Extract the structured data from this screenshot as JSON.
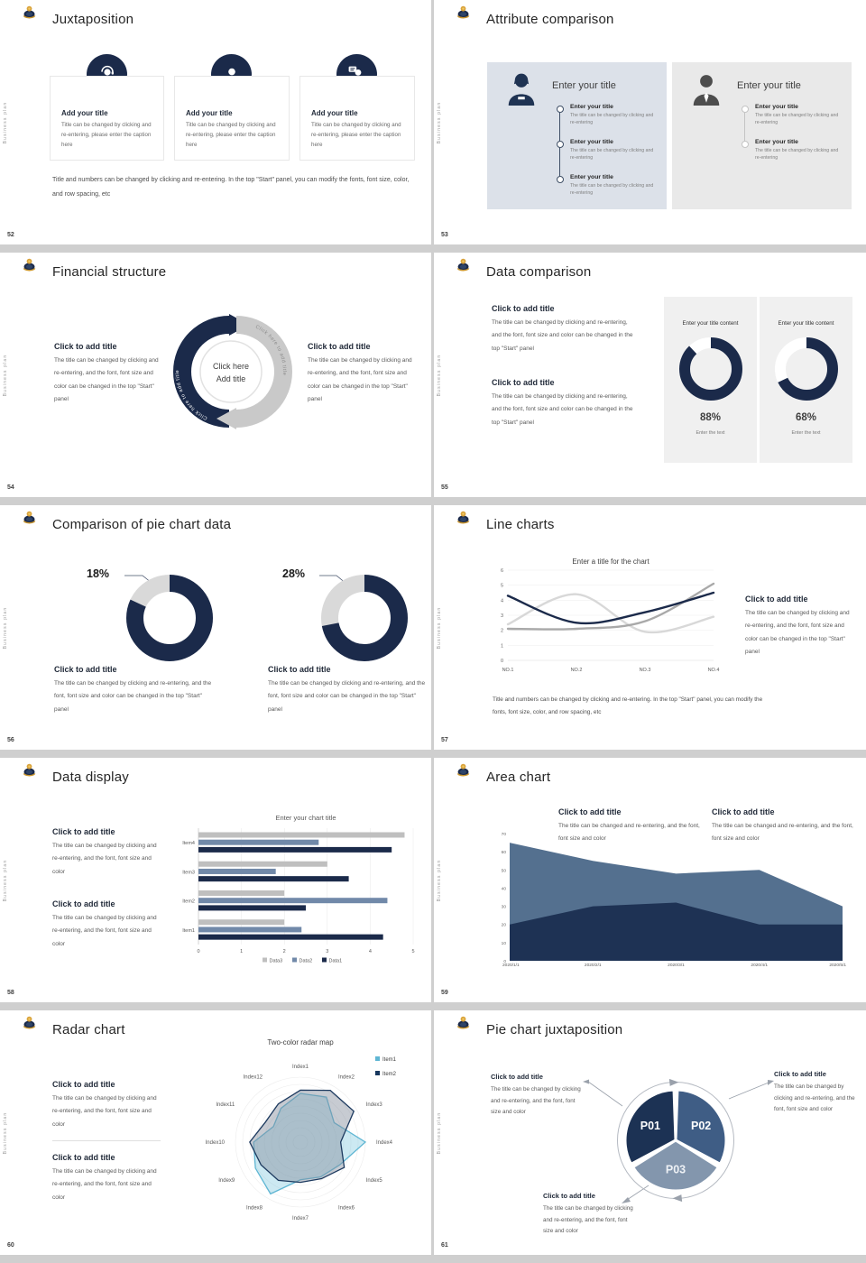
{
  "page": {
    "sidebar_text": "Business plan"
  },
  "slides": [
    {
      "number": "52",
      "title": "Juxtaposition",
      "cards": [
        {
          "title": "Add your title",
          "caption": "Title can be changed by clicking and re-entering, please enter the caption here"
        },
        {
          "title": "Add your title",
          "caption": "Title can be changed by clicking and re-entering, please enter the caption here"
        },
        {
          "title": "Add your title",
          "caption": "Title can be changed by clicking and re-entering, please enter the caption here"
        }
      ],
      "footer": "Title and numbers can be changed by clicking and re-entering. In the top \"Start\" panel, you can modify the fonts, font size, color, and row spacing, etc"
    },
    {
      "number": "53",
      "title": "Attribute comparison",
      "panels": [
        {
          "heading": "Enter your title",
          "items": [
            {
              "title": "Enter your title",
              "caption": "The title can be changed by clicking and re-entering"
            },
            {
              "title": "Enter your title",
              "caption": "The title can be changed by clicking and re-entering"
            },
            {
              "title": "Enter your title",
              "caption": "The title can be changed by clicking and re-entering"
            }
          ]
        },
        {
          "heading": "Enter your title",
          "items": [
            {
              "title": "Enter your title",
              "caption": "The title can be changed by clicking and re-entering"
            },
            {
              "title": "Enter your title",
              "caption": "The title can be changed by clicking and re-entering"
            }
          ]
        }
      ]
    },
    {
      "number": "54",
      "title": "Financial structure",
      "left": {
        "title": "Click to add title",
        "caption": "The title can be changed by clicking and re-entering, and the font, font size and color can be changed in the top \"Start\" panel"
      },
      "right": {
        "title": "Click to add title",
        "caption": "The title can be changed by clicking and re-entering, and the font, font size and color can be changed in the top \"Start\" panel"
      },
      "center": {
        "line1": "Click here",
        "line2": "Add title",
        "arc_left": "Click here to add title",
        "arc_right": "Click here to add title"
      }
    },
    {
      "number": "55",
      "title": "Data comparison",
      "blocks": [
        {
          "title": "Click to add title",
          "caption": "The title can be changed by clicking and re-entering, and the font, font size and color can be changed in the top \"Start\" panel"
        },
        {
          "title": "Click to add title",
          "caption": "The title can be changed by clicking and re-entering, and the font, font size and color can be changed in the top \"Start\" panel"
        }
      ],
      "cards": [
        {
          "heading": "Enter your title content",
          "caption": "Enter the text"
        },
        {
          "heading": "Enter your title content",
          "caption": "Enter the text"
        }
      ]
    },
    {
      "number": "56",
      "title": "Comparison of pie chart data",
      "donuts": [
        {
          "title": "Click to add title",
          "caption": "The title can be changed by clicking and re-entering, and the font, font size and color can be changed in the top \"Start\" panel"
        },
        {
          "title": "Click to add title",
          "caption": "The title can be changed by clicking and re-entering, and the font, font size and color can be changed in the top \"Start\" panel"
        }
      ]
    },
    {
      "number": "57",
      "title": "Line charts",
      "block": {
        "title": "Click to add title",
        "caption": "The title can be changed by clicking and re-entering, and the font, font size and color can be changed in the top \"Start\" panel"
      },
      "footer": "Title and numbers can be changed by clicking and re-entering. In the top \"Start\" panel, you can modify the fonts, font size, color, and row spacing, etc"
    },
    {
      "number": "58",
      "title": "Data display",
      "blocks": [
        {
          "title": "Click to add title",
          "caption": "The title can be changed by clicking and re-entering, and the font, font size and color"
        },
        {
          "title": "Click to add title",
          "caption": "The title can be changed by clicking and re-entering, and the font, font size and color"
        }
      ]
    },
    {
      "number": "59",
      "title": "Area chart",
      "blocks": [
        {
          "title": "Click to add title",
          "caption": "The title can be changed and re-entering, and the font, font size and color"
        },
        {
          "title": "Click to add title",
          "caption": "The title can be changed and re-entering, and the font, font size and color"
        }
      ]
    },
    {
      "number": "60",
      "title": "Radar chart",
      "blocks": [
        {
          "title": "Click to add title",
          "caption": "The title can be changed by clicking and re-entering, and the font, font size and color"
        },
        {
          "title": "Click to add title",
          "caption": "The title can be changed by clicking and re-entering, and the font, font size and color"
        }
      ]
    },
    {
      "number": "61",
      "title": "Pie chart juxtaposition",
      "blocks": [
        {
          "title": "Click to add title",
          "caption": "The title can be changed by clicking and re-entering, and the font, font size and color"
        },
        {
          "title": "Click to add title",
          "caption": "The title can be changed by clicking and re-entering, and the font, font size and color"
        },
        {
          "title": "Click to add title",
          "caption": "The title can be changed by clicking and re-entering, and the font, font size and color"
        }
      ]
    }
  ],
  "chart_data": [
    {
      "name": "data-comparison-donut-1",
      "type": "donut",
      "percent": 88,
      "label": "88%",
      "colors": {
        "main": "#1b2a4a",
        "rest": "#ffffff"
      }
    },
    {
      "name": "data-comparison-donut-2",
      "type": "donut",
      "percent": 68,
      "label": "68%",
      "colors": {
        "main": "#1b2a4a",
        "rest": "#ffffff"
      }
    },
    {
      "name": "pie-comparison-donut-1",
      "type": "donut",
      "percent": 82,
      "highlight_percent": 18,
      "label": "18%",
      "colors": {
        "main": "#1b2a4a",
        "rest": "#d9d9d9"
      }
    },
    {
      "name": "pie-comparison-donut-2",
      "type": "donut",
      "percent": 72,
      "highlight_percent": 28,
      "label": "28%",
      "colors": {
        "main": "#1b2a4a",
        "rest": "#d9d9d9"
      }
    },
    {
      "name": "line-chart",
      "type": "line",
      "title": "Enter a title for the chart",
      "x": [
        "NO.1",
        "NO.2",
        "NO.3",
        "NO.4"
      ],
      "ylim": [
        0,
        6
      ],
      "yticks": [
        0,
        1,
        2,
        3,
        4,
        5,
        6
      ],
      "series": [
        {
          "color": "#1b2a4a",
          "values": [
            4.3,
            2.5,
            3.2,
            4.5
          ]
        },
        {
          "color": "#d8d8d8",
          "values": [
            2.4,
            4.4,
            1.9,
            2.9
          ]
        },
        {
          "color": "#a9a9a9",
          "values": [
            2.1,
            2.1,
            2.6,
            5.1
          ]
        }
      ]
    },
    {
      "name": "bar-chart",
      "type": "bar",
      "title": "Enter your chart title",
      "orientation": "horizontal",
      "categories": [
        "Item1",
        "Item2",
        "Item3",
        "Item4"
      ],
      "xlim": [
        0,
        5
      ],
      "xticks": [
        0,
        1,
        2,
        3,
        4,
        5
      ],
      "series": [
        {
          "name": "Data1",
          "color": "#1b2a4a",
          "values": [
            4.3,
            2.5,
            3.5,
            4.5
          ]
        },
        {
          "name": "Data2",
          "color": "#7189a9",
          "values": [
            2.4,
            4.4,
            1.8,
            2.8
          ]
        },
        {
          "name": "Data3",
          "color": "#bfbfbf",
          "values": [
            2.0,
            2.0,
            3.0,
            4.8
          ]
        }
      ],
      "legend": [
        "Data3",
        "Data2",
        "Data1"
      ]
    },
    {
      "name": "area-chart",
      "type": "area",
      "x": [
        "2020/1/1",
        "2020/2/1",
        "2020/3/1",
        "2020/4/1",
        "2020/5/1"
      ],
      "ylim": [
        0,
        70
      ],
      "yticks": [
        0,
        10,
        20,
        30,
        40,
        50,
        60,
        70
      ],
      "series": [
        {
          "color": "#54708f",
          "values": [
            65,
            55,
            48,
            50,
            30
          ]
        },
        {
          "color": "#1e3254",
          "values": [
            20,
            30,
            32,
            20,
            20
          ]
        }
      ]
    },
    {
      "name": "radar-chart",
      "type": "radar",
      "title": "Two-color radar map",
      "categories": [
        "Index1",
        "Index2",
        "Index3",
        "Index4",
        "Index5",
        "Index6",
        "Index7",
        "Index8",
        "Index9",
        "Index10",
        "Index11",
        "Index12"
      ],
      "scale": "relative 0-1",
      "series": [
        {
          "name": "Item1",
          "color": "#5fb6d3",
          "fill": "rgba(127,199,223,0.40)",
          "values": [
            0.75,
            0.8,
            0.6,
            1.0,
            0.7,
            0.62,
            0.58,
            0.92,
            0.8,
            0.72,
            0.48,
            0.6
          ]
        },
        {
          "name": "Item2",
          "color": "#1d3a5f",
          "fill": "rgba(130,140,155,0.45)",
          "values": [
            0.8,
            0.92,
            0.95,
            0.62,
            0.78,
            0.65,
            0.62,
            0.68,
            0.7,
            0.78,
            0.62,
            0.68
          ]
        }
      ]
    },
    {
      "name": "pie-juxtaposition",
      "type": "pie",
      "labels": [
        "P01",
        "P02",
        "P03"
      ],
      "values": [
        33.3,
        33.3,
        33.4
      ],
      "colors": [
        "#1c3254",
        "#3f5d85",
        "#8396ad"
      ]
    }
  ]
}
